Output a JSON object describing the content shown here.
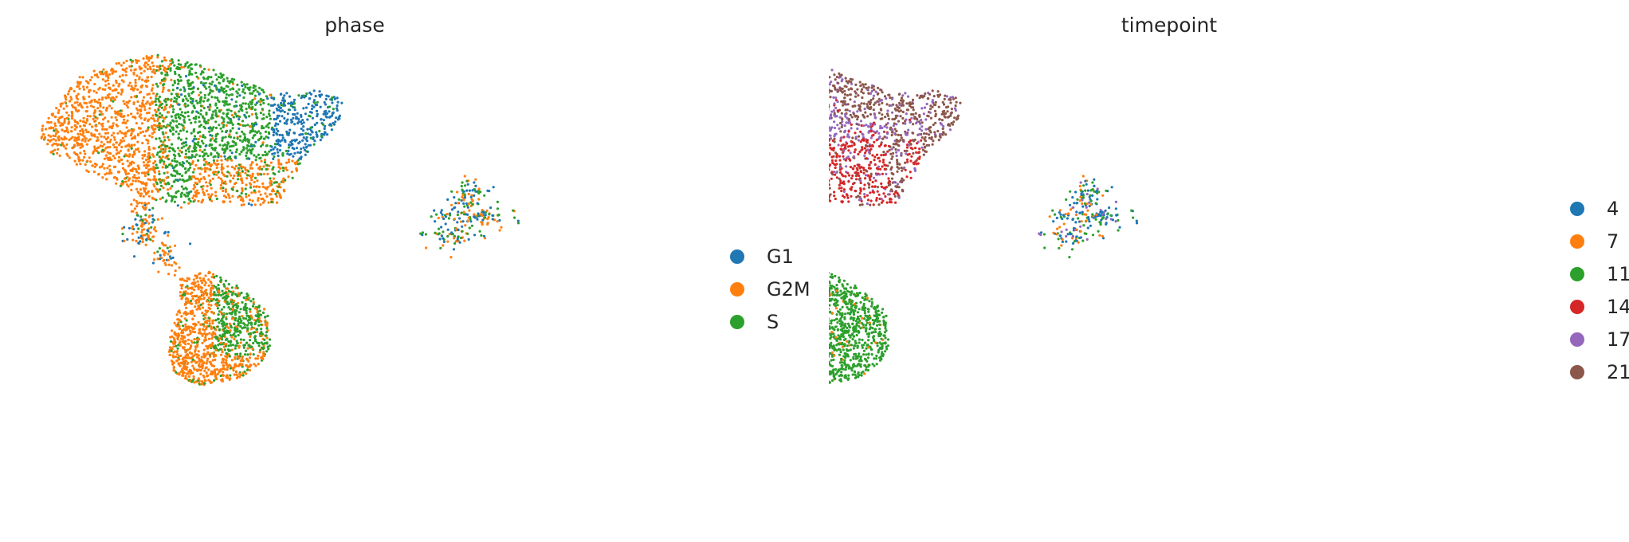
{
  "chart_data": [
    {
      "type": "scatter",
      "title": "phase",
      "xlabel": "",
      "ylabel": "",
      "grid": false,
      "axes_visible": false,
      "legend_placement": "right",
      "categories": [
        "G1",
        "G2M",
        "S"
      ],
      "colors": {
        "G1": "#1f77b4",
        "G2M": "#ff7f0e",
        "S": "#2ca02c"
      }
    },
    {
      "type": "scatter",
      "title": "timepoint",
      "xlabel": "",
      "ylabel": "",
      "grid": false,
      "axes_visible": false,
      "legend_placement": "right",
      "categories": [
        "4",
        "7",
        "11",
        "14",
        "17",
        "21"
      ],
      "colors": {
        "4": "#1f77b4",
        "7": "#ff7f0e",
        "11": "#2ca02c",
        "14": "#d62728",
        "17": "#9467bd",
        "21": "#8c564b"
      }
    }
  ]
}
